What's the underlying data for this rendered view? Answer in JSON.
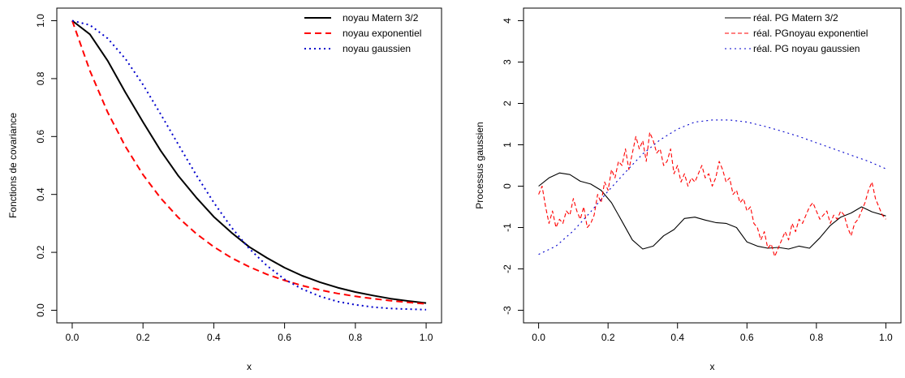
{
  "chart_data": [
    {
      "type": "line",
      "xlabel": "x",
      "ylabel": "Fonctions de covariance",
      "xlim": [
        0,
        1
      ],
      "ylim": [
        0,
        1
      ],
      "xticks": [
        0.0,
        0.2,
        0.4,
        0.6,
        0.8,
        1.0
      ],
      "xtick_labels": [
        "0.0",
        "0.2",
        "0.4",
        "0.6",
        "0.8",
        "1.0"
      ],
      "yticks": [
        0.0,
        0.2,
        0.4,
        0.6,
        0.8,
        1.0
      ],
      "ytick_labels": [
        "0.0",
        "0.2",
        "0.4",
        "0.6",
        "0.8",
        "1.0"
      ],
      "grid": false,
      "legend_position": "top-right",
      "x": [
        0.0,
        0.05,
        0.1,
        0.15,
        0.2,
        0.25,
        0.3,
        0.35,
        0.4,
        0.45,
        0.5,
        0.55,
        0.6,
        0.65,
        0.7,
        0.75,
        0.8,
        0.85,
        0.9,
        0.95,
        1.0
      ],
      "series": [
        {
          "name": "noyau Matern 3/2",
          "color": "#000000",
          "dash": "solid",
          "values": [
            1.0,
            0.953,
            0.862,
            0.753,
            0.65,
            0.551,
            0.464,
            0.39,
            0.323,
            0.268,
            0.219,
            0.181,
            0.147,
            0.119,
            0.097,
            0.078,
            0.063,
            0.051,
            0.04,
            0.032,
            0.025
          ]
        },
        {
          "name": "noyau exponentiel",
          "color": "#ff0000",
          "dash": "dashed",
          "values": [
            1.0,
            0.827,
            0.684,
            0.566,
            0.468,
            0.387,
            0.32,
            0.265,
            0.219,
            0.181,
            0.15,
            0.124,
            0.103,
            0.085,
            0.07,
            0.058,
            0.048,
            0.04,
            0.033,
            0.027,
            0.022
          ]
        },
        {
          "name": "noyau gaussien",
          "color": "#0000cc",
          "dash": "dotted",
          "values": [
            1.0,
            0.985,
            0.939,
            0.869,
            0.779,
            0.677,
            0.572,
            0.468,
            0.372,
            0.286,
            0.213,
            0.154,
            0.107,
            0.073,
            0.048,
            0.03,
            0.019,
            0.011,
            0.006,
            0.004,
            0.002
          ]
        }
      ]
    },
    {
      "type": "line",
      "xlabel": "x",
      "ylabel": "Processus gaussien",
      "xlim": [
        0,
        1
      ],
      "ylim": [
        -3,
        4
      ],
      "xticks": [
        0.0,
        0.2,
        0.4,
        0.6,
        0.8,
        1.0
      ],
      "xtick_labels": [
        "0.0",
        "0.2",
        "0.4",
        "0.6",
        "0.8",
        "1.0"
      ],
      "yticks": [
        -3,
        -2,
        -1,
        0,
        1,
        2,
        3,
        4
      ],
      "ytick_labels": [
        "-3",
        "-2",
        "-1",
        "0",
        "1",
        "2",
        "3",
        "4"
      ],
      "grid": false,
      "legend_position": "top-right",
      "series": [
        {
          "name": "réal. PG Matern 3/2",
          "color": "#000000",
          "dash": "solid",
          "x": [
            0.0,
            0.03,
            0.06,
            0.09,
            0.12,
            0.15,
            0.18,
            0.21,
            0.24,
            0.27,
            0.3,
            0.33,
            0.36,
            0.39,
            0.42,
            0.45,
            0.48,
            0.51,
            0.54,
            0.57,
            0.6,
            0.63,
            0.66,
            0.69,
            0.72,
            0.75,
            0.78,
            0.81,
            0.84,
            0.87,
            0.9,
            0.93,
            0.96,
            1.0
          ],
          "values": [
            0.0,
            0.2,
            0.32,
            0.28,
            0.12,
            0.05,
            -0.1,
            -0.4,
            -0.85,
            -1.3,
            -1.52,
            -1.45,
            -1.2,
            -1.05,
            -0.78,
            -0.75,
            -0.82,
            -0.88,
            -0.9,
            -1.0,
            -1.35,
            -1.45,
            -1.5,
            -1.48,
            -1.52,
            -1.45,
            -1.5,
            -1.25,
            -0.95,
            -0.75,
            -0.65,
            -0.5,
            -0.62,
            -0.72
          ]
        },
        {
          "name": "réal. PGnoyau exponentiel",
          "color": "#ff0000",
          "dash": "dashed",
          "x": [
            0.0,
            0.01,
            0.02,
            0.03,
            0.04,
            0.05,
            0.06,
            0.07,
            0.08,
            0.09,
            0.1,
            0.11,
            0.12,
            0.13,
            0.14,
            0.15,
            0.16,
            0.17,
            0.18,
            0.19,
            0.2,
            0.21,
            0.22,
            0.23,
            0.24,
            0.25,
            0.26,
            0.27,
            0.28,
            0.29,
            0.3,
            0.31,
            0.32,
            0.33,
            0.34,
            0.35,
            0.36,
            0.37,
            0.38,
            0.39,
            0.4,
            0.41,
            0.42,
            0.43,
            0.44,
            0.45,
            0.46,
            0.47,
            0.48,
            0.49,
            0.5,
            0.51,
            0.52,
            0.53,
            0.54,
            0.55,
            0.56,
            0.57,
            0.58,
            0.59,
            0.6,
            0.61,
            0.62,
            0.63,
            0.64,
            0.65,
            0.66,
            0.67,
            0.68,
            0.69,
            0.7,
            0.71,
            0.72,
            0.73,
            0.74,
            0.75,
            0.76,
            0.77,
            0.78,
            0.79,
            0.8,
            0.81,
            0.82,
            0.83,
            0.84,
            0.85,
            0.86,
            0.87,
            0.88,
            0.89,
            0.9,
            0.91,
            0.92,
            0.93,
            0.94,
            0.95,
            0.96,
            0.97,
            0.98,
            0.99,
            1.0
          ],
          "values": [
            -0.2,
            0.0,
            -0.5,
            -0.9,
            -0.6,
            -1.0,
            -0.8,
            -0.9,
            -0.6,
            -0.7,
            -0.3,
            -0.6,
            -0.8,
            -0.5,
            -1.0,
            -0.9,
            -0.7,
            -0.2,
            -0.4,
            0.1,
            -0.1,
            0.4,
            0.2,
            0.6,
            0.5,
            0.9,
            0.4,
            0.8,
            1.2,
            0.9,
            1.1,
            0.6,
            1.3,
            1.1,
            0.8,
            0.9,
            0.5,
            0.6,
            0.9,
            0.3,
            0.5,
            0.1,
            0.3,
            0.0,
            0.2,
            0.1,
            0.3,
            0.5,
            0.2,
            0.3,
            0.0,
            0.2,
            0.6,
            0.4,
            0.1,
            0.2,
            -0.2,
            -0.1,
            -0.4,
            -0.3,
            -0.6,
            -0.5,
            -0.9,
            -1.0,
            -1.3,
            -1.1,
            -1.5,
            -1.4,
            -1.7,
            -1.5,
            -1.3,
            -1.1,
            -1.3,
            -0.9,
            -1.1,
            -0.8,
            -0.9,
            -0.7,
            -0.5,
            -0.4,
            -0.6,
            -0.8,
            -0.7,
            -0.6,
            -0.9,
            -0.7,
            -0.8,
            -0.6,
            -0.7,
            -1.0,
            -1.2,
            -0.9,
            -0.8,
            -0.6,
            -0.4,
            -0.1,
            0.1,
            -0.3,
            -0.5,
            -0.7,
            -0.8
          ]
        },
        {
          "name": "réal. PG noyau gaussien",
          "color": "#0000cc",
          "dash": "dotted",
          "x": [
            0.0,
            0.05,
            0.1,
            0.15,
            0.2,
            0.25,
            0.3,
            0.35,
            0.4,
            0.45,
            0.5,
            0.55,
            0.6,
            0.65,
            0.7,
            0.75,
            0.8,
            0.85,
            0.9,
            0.95,
            1.0
          ],
          "values": [
            -1.65,
            -1.45,
            -1.08,
            -0.62,
            -0.12,
            0.34,
            0.78,
            1.12,
            1.38,
            1.55,
            1.6,
            1.6,
            1.55,
            1.45,
            1.33,
            1.2,
            1.05,
            0.9,
            0.75,
            0.6,
            0.42
          ]
        }
      ]
    }
  ]
}
